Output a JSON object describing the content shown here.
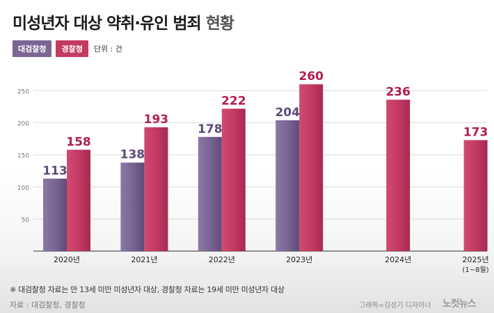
{
  "header": {
    "title_main": "미성년자 대상 약취·유인 범죄",
    "title_tail": "현황"
  },
  "legend": {
    "prosecution": "대검찰청",
    "police": "경찰청",
    "unit": "단위 : 건"
  },
  "colors": {
    "prosecution": "#7a6594",
    "police": "#c43a62",
    "value_prosecution": "#5e4a78",
    "value_police": "#b01e4e"
  },
  "chart_data": {
    "type": "bar",
    "categories": [
      "2020년",
      "2021년",
      "2022년",
      "2023년",
      "2024년",
      "2025년"
    ],
    "category_notes": [
      "",
      "",
      "",
      "",
      "",
      "(1~8월)"
    ],
    "series": [
      {
        "name": "대검찰청",
        "values": [
          113,
          138,
          178,
          204,
          null,
          null
        ]
      },
      {
        "name": "경찰청",
        "values": [
          158,
          193,
          222,
          260,
          236,
          173
        ]
      }
    ],
    "yticks": [
      50,
      100,
      150,
      200,
      250
    ],
    "ylim": [
      0,
      270
    ],
    "grid": true,
    "legend_position": "top-left"
  },
  "footer": {
    "note": "※ 대검찰청 자료는 만 13세 미만 미성년자 대상, 경찰청 자료는 19세 미만 미성년자 대상",
    "source": "자료 : 대검찰청, 경찰청",
    "credit": "그래픽=김성기 디자이너",
    "logo": "노컷뉴스"
  }
}
